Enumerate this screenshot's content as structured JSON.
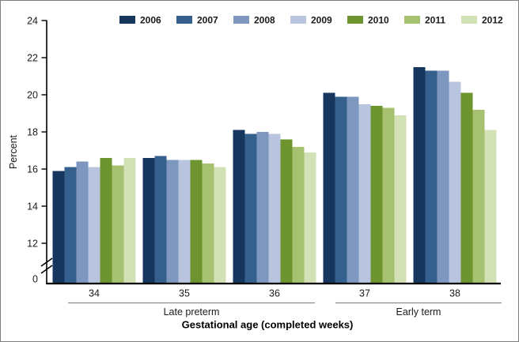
{
  "figure": {
    "background": "#ffffff",
    "border_color": "#7f7f7f",
    "axis_color": "#000000",
    "bracket_line_color": "#8c8c8c"
  },
  "chart_data": {
    "type": "bar",
    "title": "",
    "xlabel": "Gestational age (completed weeks)",
    "ylabel": "Percent",
    "categories": [
      "34",
      "35",
      "36",
      "37",
      "38"
    ],
    "category_groups": [
      {
        "label": "Late preterm",
        "categories": [
          "34",
          "35",
          "36"
        ]
      },
      {
        "label": "Early term",
        "categories": [
          "37",
          "38"
        ]
      }
    ],
    "series": [
      {
        "name": "2006",
        "color": "#17365D",
        "values": [
          15.9,
          16.6,
          18.1,
          20.1,
          21.5
        ]
      },
      {
        "name": "2007",
        "color": "#355F8D",
        "values": [
          16.1,
          16.7,
          17.9,
          19.9,
          21.3
        ]
      },
      {
        "name": "2008",
        "color": "#7D97BE",
        "values": [
          16.4,
          16.5,
          18.0,
          19.9,
          21.3
        ]
      },
      {
        "name": "2009",
        "color": "#B9C5DE",
        "values": [
          16.1,
          16.5,
          17.9,
          19.5,
          20.7
        ]
      },
      {
        "name": "2010",
        "color": "#6E9430",
        "values": [
          16.6,
          16.5,
          17.6,
          19.4,
          20.1
        ]
      },
      {
        "name": "2011",
        "color": "#A6C16F",
        "values": [
          16.2,
          16.3,
          17.2,
          19.3,
          19.2
        ]
      },
      {
        "name": "2012",
        "color": "#D3E1B6",
        "values": [
          16.6,
          16.1,
          16.9,
          18.9,
          18.1
        ]
      }
    ],
    "yticks": [
      0,
      12,
      14,
      16,
      18,
      20,
      22,
      24
    ],
    "ylim_display": [
      12,
      24
    ],
    "axis_break": true,
    "legend_position": "top",
    "grid": false
  }
}
